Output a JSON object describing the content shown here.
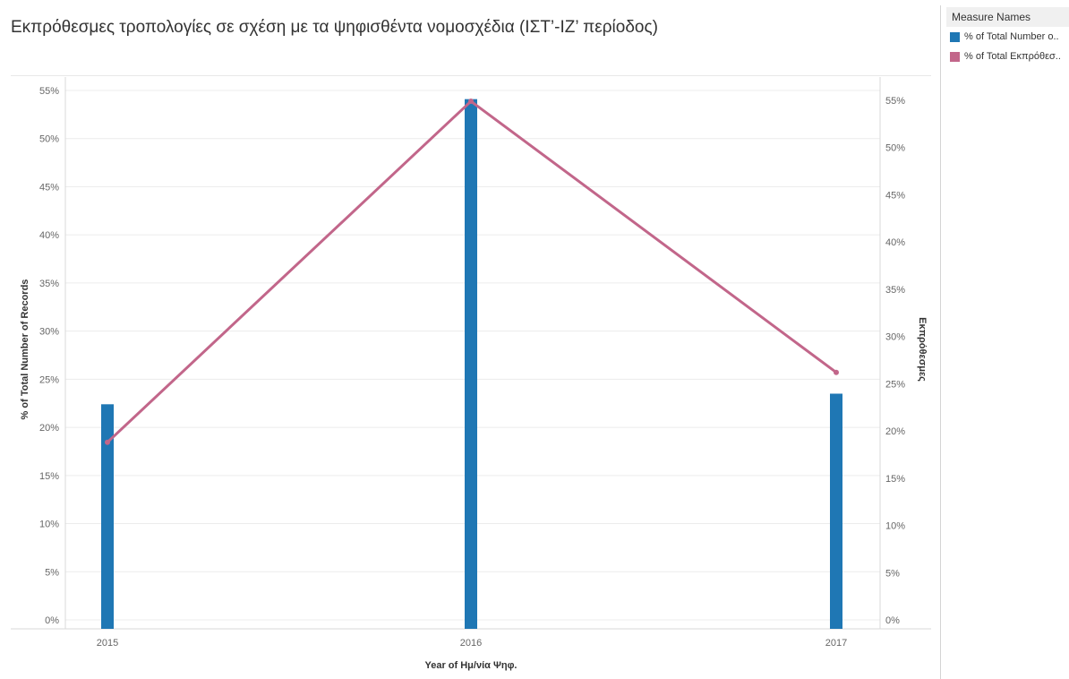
{
  "title": "Εκπρόθεσμες τροπολογίες σε σχέση με τα ψηφισθέντα νομοσχέδια (ΙΣΤ’-ΙΖ’ περίοδος)",
  "legend": {
    "title": "Measure Names",
    "items": [
      {
        "label": "% of Total Number o..",
        "color": "#1f77b4"
      },
      {
        "label": "% of Total Εκπρόθεσ..",
        "color": "#c2668a"
      }
    ]
  },
  "chart_data": {
    "type": "bar",
    "xlabel": "Year of Ημ/νία Ψηφ.",
    "ylabel_left": "% of Total Number of Records",
    "ylabel_right": "Εκπρόθεσμες",
    "categories": [
      "2015",
      "2016",
      "2017"
    ],
    "left_ylim": [
      0,
      55
    ],
    "right_ylim": [
      0,
      55
    ],
    "left_ticks": [
      "0%",
      "5%",
      "10%",
      "15%",
      "20%",
      "25%",
      "30%",
      "35%",
      "40%",
      "45%",
      "50%",
      "55%"
    ],
    "right_ticks": [
      "0%",
      "5%",
      "10%",
      "15%",
      "20%",
      "25%",
      "30%",
      "35%",
      "40%",
      "45%",
      "50%",
      "55%"
    ],
    "grid": true,
    "legend_position": "top-right",
    "series": [
      {
        "name": "% of Total Number of Records",
        "type": "bar",
        "axis": "left",
        "color": "#1f77b4",
        "values": [
          22.4,
          54.1,
          23.5
        ]
      },
      {
        "name": "% of Total Εκπρόθεσμες",
        "type": "line",
        "axis": "right",
        "color": "#c2668a",
        "values": [
          18.8,
          54.9,
          26.2
        ]
      }
    ]
  }
}
